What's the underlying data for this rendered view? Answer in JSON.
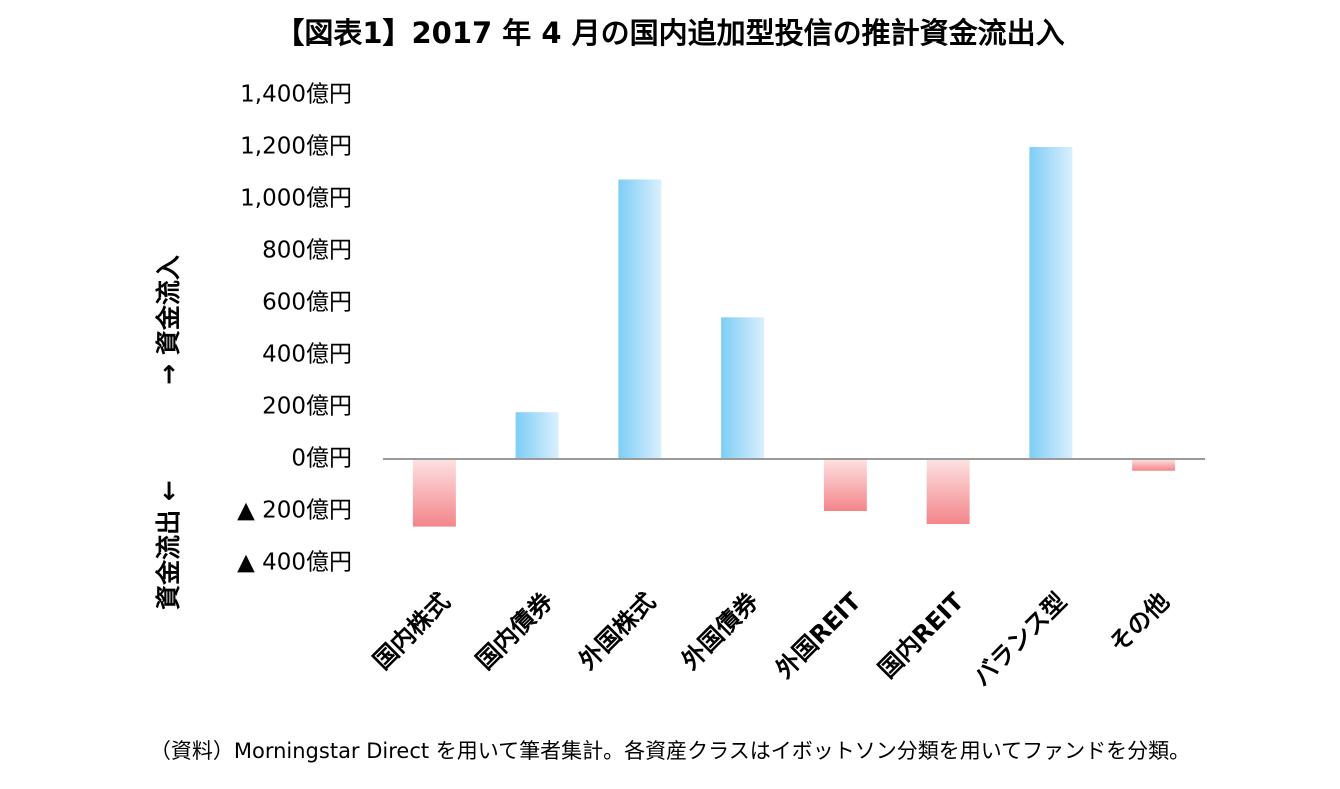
{
  "chart_data": {
    "type": "bar",
    "title": "【図表1】2017 年 4 月の国内追加型投信の推計資金流出入",
    "categories": [
      "国内株式",
      "国内債券",
      "外国株式",
      "外国債券",
      "外国REIT",
      "国内REIT",
      "バランス型",
      "その他"
    ],
    "values": [
      -260,
      180,
      1075,
      545,
      -200,
      -250,
      1200,
      -45
    ],
    "yticks": [
      {
        "value": 1400,
        "label": "1,400億円"
      },
      {
        "value": 1200,
        "label": "1,200億円"
      },
      {
        "value": 1000,
        "label": "1,000億円"
      },
      {
        "value": 800,
        "label": "800億円"
      },
      {
        "value": 600,
        "label": "600億円"
      },
      {
        "value": 400,
        "label": "400億円"
      },
      {
        "value": 200,
        "label": "200億円"
      },
      {
        "value": 0,
        "label": "0億円"
      },
      {
        "value": -200,
        "label": "▲ 200億円"
      },
      {
        "value": -400,
        "label": "▲ 400億円"
      }
    ],
    "ylim": [
      -400,
      1400
    ],
    "grid": false,
    "ylabel_upper": "→ 資金流入",
    "ylabel_lower": "資金流出 ←",
    "colors": {
      "positive_light": "#dbeffd",
      "positive_dark": "#7dcdf6",
      "negative_light": "#fde2e2",
      "negative_dark": "#f3858a",
      "axis": "#9a9a9a"
    }
  },
  "source_note": "（資料）Morningstar Direct を用いて筆者集計。各資産クラスはイボットソン分類を用いてファンドを分類。"
}
